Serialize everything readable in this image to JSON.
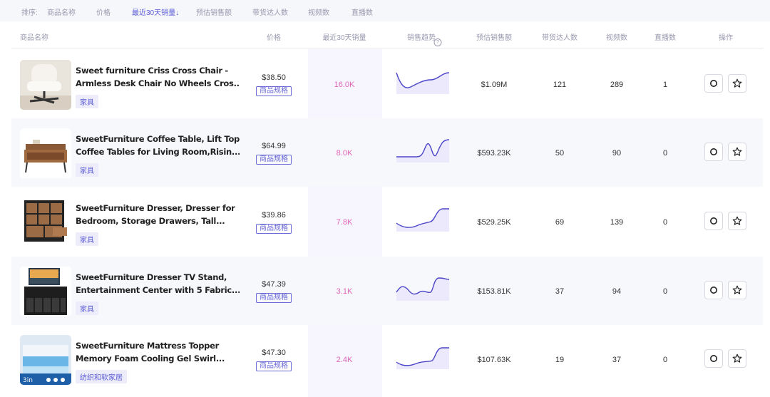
{
  "sortbar": {
    "label": "排序:",
    "options": [
      "商品名称",
      "价格",
      "最近30天销量↓",
      "预估销售额",
      "带货达人数",
      "视频数",
      "直播数"
    ],
    "active_index": 2
  },
  "table": {
    "headers": {
      "name": "商品名称",
      "price": "价格",
      "sales30": "最近30天销量",
      "trend": "销售趋势",
      "revenue": "预估销售额",
      "creators": "带货达人数",
      "videos": "视频数",
      "lives": "直播数",
      "actions": "操作"
    },
    "spec_label": "商品规格",
    "rows": [
      {
        "title1": "Sweet furniture Criss Cross Chair -",
        "title2": "Armless Desk Chair No Wheels Cros...",
        "category": "家具",
        "price": "$38.50",
        "sales30": "16.0K",
        "revenue": "$1.09M",
        "creators": "121",
        "videos": "289",
        "lives": "1",
        "thumb_icon": "white-chair-image"
      },
      {
        "title1": "SweetFurniture Coffee Table, Lift Top",
        "title2": "Coffee Tables for Living Room,Risin...",
        "category": "家具",
        "price": "$64.99",
        "sales30": "8.0K",
        "revenue": "$593.23K",
        "creators": "50",
        "videos": "90",
        "lives": "0",
        "thumb_icon": "coffee-table-image"
      },
      {
        "title1": "SweetFurniture Dresser, Dresser for",
        "title2": "Bedroom, Storage Drawers, Tall...",
        "category": "家具",
        "price": "$39.86",
        "sales30": "7.8K",
        "revenue": "$529.25K",
        "creators": "69",
        "videos": "139",
        "lives": "0",
        "thumb_icon": "dresser-image"
      },
      {
        "title1": "SweetFurniture Dresser TV Stand,",
        "title2": "Entertainment Center with 5 Fabric...",
        "category": "家具",
        "price": "$47.39",
        "sales30": "3.1K",
        "revenue": "$153.81K",
        "creators": "37",
        "videos": "94",
        "lives": "0",
        "thumb_icon": "tv-stand-image"
      },
      {
        "title1": "SweetFurniture Mattress Topper",
        "title2": "Memory Foam Cooling Gel Swirl...",
        "category": "纺织和软家居",
        "price": "$47.30",
        "sales30": "2.4K",
        "revenue": "$107.63K",
        "creators": "19",
        "videos": "37",
        "lives": "0",
        "thumb_icon": "mattress-topper-image"
      }
    ]
  },
  "thumb_text": {
    "mattress_badge": "3in"
  },
  "icons": [
    "help-icon",
    "search-icon",
    "star-icon"
  ],
  "colors": {
    "accent": "#5b5bd6",
    "sales": "#e066b8",
    "sparkline": "#4b44c8",
    "highlight_column": "#f7f6ff"
  }
}
